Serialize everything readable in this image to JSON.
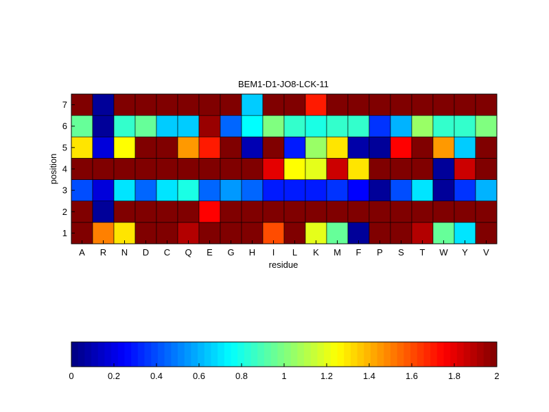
{
  "chart_data": {
    "type": "heatmap",
    "title": "BEM1-D1-JO8-LCK-11",
    "xlabel": "residue",
    "ylabel": "position",
    "x_categories": [
      "A",
      "R",
      "N",
      "D",
      "C",
      "Q",
      "E",
      "G",
      "H",
      "I",
      "L",
      "K",
      "M",
      "F",
      "P",
      "S",
      "T",
      "W",
      "Y",
      "V"
    ],
    "y_categories": [
      "1",
      "2",
      "3",
      "4",
      "5",
      "6",
      "7"
    ],
    "colormap": "jet",
    "color_range": [
      0,
      2
    ],
    "colorbar": {
      "placement": "bottom",
      "ticks": [
        0,
        0.2,
        0.4,
        0.6,
        0.8,
        1,
        1.2,
        1.4,
        1.6,
        1.8,
        2
      ],
      "tick_labels": [
        "0",
        "0.2",
        "0.4",
        "0.6",
        "0.8",
        "1",
        "1.2",
        "1.4",
        "1.6",
        "1.8",
        "2"
      ]
    },
    "rows": [
      {
        "position": "1",
        "values": [
          2.0,
          1.5,
          1.3,
          2.0,
          2.0,
          1.9,
          2.0,
          2.0,
          2.0,
          1.6,
          2.0,
          1.2,
          0.95,
          0.05,
          2.0,
          2.0,
          1.9,
          0.95,
          0.7,
          2.0
        ]
      },
      {
        "position": "2",
        "values": [
          2.0,
          0.05,
          2.0,
          2.0,
          2.0,
          2.0,
          1.75,
          2.0,
          2.0,
          2.0,
          2.0,
          2.0,
          2.0,
          2.0,
          2.0,
          2.0,
          2.0,
          2.0,
          2.0,
          2.0
        ]
      },
      {
        "position": "3",
        "values": [
          0.4,
          0.18,
          0.7,
          0.45,
          0.7,
          0.8,
          0.45,
          0.55,
          0.45,
          0.3,
          0.3,
          0.3,
          0.35,
          0.25,
          0.05,
          0.4,
          0.7,
          0.05,
          0.35,
          0.6
        ]
      },
      {
        "position": "4",
        "values": [
          2.0,
          2.0,
          2.0,
          2.0,
          2.0,
          2.0,
          2.0,
          2.0,
          2.0,
          1.8,
          1.25,
          1.2,
          1.85,
          1.3,
          2.0,
          2.0,
          2.0,
          0.05,
          1.85,
          2.0
        ]
      },
      {
        "position": "5",
        "values": [
          1.3,
          0.18,
          1.25,
          2.0,
          2.0,
          1.45,
          1.7,
          2.0,
          0.1,
          2.0,
          0.3,
          1.05,
          1.3,
          0.08,
          0.05,
          1.75,
          2.0,
          1.45,
          0.65,
          2.0
        ]
      },
      {
        "position": "6",
        "values": [
          0.95,
          0.05,
          0.85,
          0.95,
          0.65,
          0.65,
          1.95,
          0.45,
          0.75,
          1.0,
          0.85,
          0.8,
          0.85,
          0.85,
          0.35,
          0.6,
          1.05,
          0.85,
          0.85,
          1.0
        ]
      },
      {
        "position": "7",
        "values": [
          2.0,
          0.05,
          2.0,
          2.0,
          2.0,
          2.0,
          2.0,
          2.0,
          0.65,
          2.0,
          2.0,
          1.7,
          2.0,
          2.0,
          2.0,
          2.0,
          2.0,
          2.0,
          2.0,
          2.0
        ]
      }
    ]
  }
}
